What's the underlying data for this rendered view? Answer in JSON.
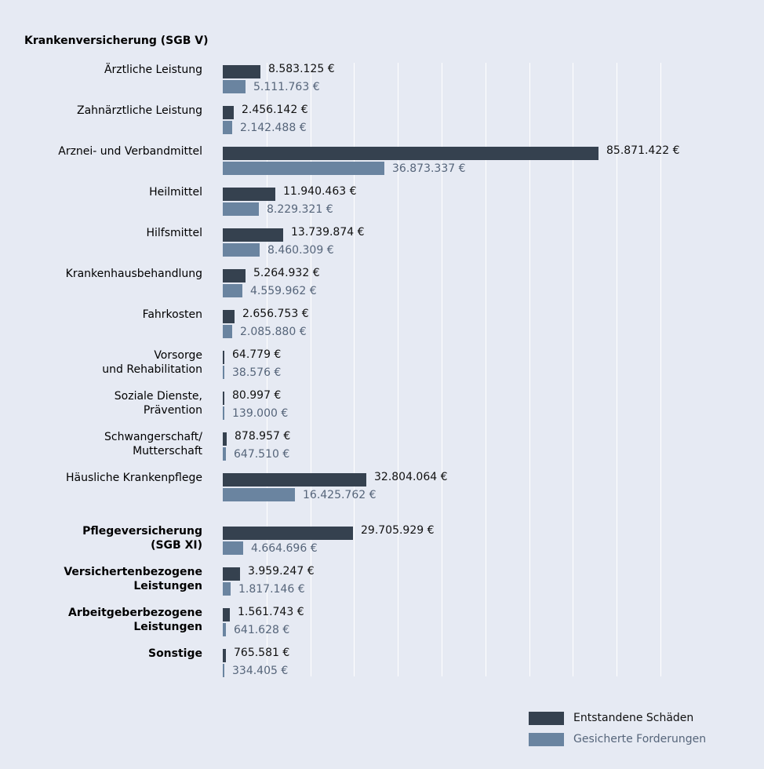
{
  "chart_data": {
    "type": "bar",
    "orientation": "horizontal",
    "title": "Krankenversicherung (SGB V)",
    "xlim": [
      0,
      100000000
    ],
    "grid": true,
    "grid_step": 10000000,
    "legend_position": "bottom-right",
    "series": [
      {
        "name": "Entstandene Schäden",
        "color": "#35414f"
      },
      {
        "name": "Gesicherte Forderungen",
        "color": "#6a84a0"
      }
    ],
    "categories": [
      {
        "label": [
          "Ärztliche Leistung"
        ],
        "bold": false,
        "values": [
          8583125,
          5111763
        ],
        "labels": [
          "8.583.125 €",
          "5.111.763 €"
        ]
      },
      {
        "label": [
          "Zahnärztliche Leistung"
        ],
        "bold": false,
        "values": [
          2456142,
          2142488
        ],
        "labels": [
          "2.456.142 €",
          "2.142.488 €"
        ]
      },
      {
        "label": [
          "Arznei- und Verbandmittel"
        ],
        "bold": false,
        "values": [
          85871422,
          36873337
        ],
        "labels": [
          "85.871.422 €",
          "36.873.337 €"
        ]
      },
      {
        "label": [
          "Heilmittel"
        ],
        "bold": false,
        "values": [
          11940463,
          8229321
        ],
        "labels": [
          "11.940.463 €",
          "8.229.321 €"
        ]
      },
      {
        "label": [
          "Hilfsmittel"
        ],
        "bold": false,
        "values": [
          13739874,
          8460309
        ],
        "labels": [
          "13.739.874 €",
          "8.460.309 €"
        ]
      },
      {
        "label": [
          "Krankenhausbehandlung"
        ],
        "bold": false,
        "values": [
          5264932,
          4559962
        ],
        "labels": [
          "5.264.932 €",
          "4.559.962 €"
        ]
      },
      {
        "label": [
          "Fahrkosten"
        ],
        "bold": false,
        "values": [
          2656753,
          2085880
        ],
        "labels": [
          "2.656.753 €",
          "2.085.880 €"
        ]
      },
      {
        "label": [
          "Vorsorge",
          "und Rehabilitation"
        ],
        "bold": false,
        "values": [
          64779,
          38576
        ],
        "labels": [
          "64.779 €",
          "38.576 €"
        ]
      },
      {
        "label": [
          "Soziale Dienste,",
          "Prävention"
        ],
        "bold": false,
        "values": [
          80997,
          139000
        ],
        "labels": [
          "80.997 €",
          "139.000 €"
        ]
      },
      {
        "label": [
          "Schwangerschaft/",
          "Mutterschaft"
        ],
        "bold": false,
        "values": [
          878957,
          647510
        ],
        "labels": [
          "878.957 €",
          "647.510 €"
        ]
      },
      {
        "label": [
          "Häusliche Krankenpflege"
        ],
        "bold": false,
        "values": [
          32804064,
          16425762
        ],
        "labels": [
          "32.804.064 €",
          "16.425.762 €"
        ]
      },
      {
        "label": [
          "Pflegeversicherung",
          "(SGB XI)"
        ],
        "bold": true,
        "values": [
          29705929,
          4664696
        ],
        "labels": [
          "29.705.929 €",
          "4.664.696 €"
        ]
      },
      {
        "label": [
          "Versichertenbezogene",
          "Leistungen"
        ],
        "bold": true,
        "values": [
          3959247,
          1817146
        ],
        "labels": [
          "3.959.247 €",
          "1.817.146 €"
        ]
      },
      {
        "label": [
          "Arbeitgeberbezogene",
          "Leistungen"
        ],
        "bold": true,
        "values": [
          1561743,
          641628
        ],
        "labels": [
          "1.561.743 €",
          "641.628 €"
        ]
      },
      {
        "label": [
          "Sonstige"
        ],
        "bold": true,
        "values": [
          765581,
          334405
        ],
        "labels": [
          "765.581 €",
          "334.405 €"
        ]
      }
    ]
  }
}
